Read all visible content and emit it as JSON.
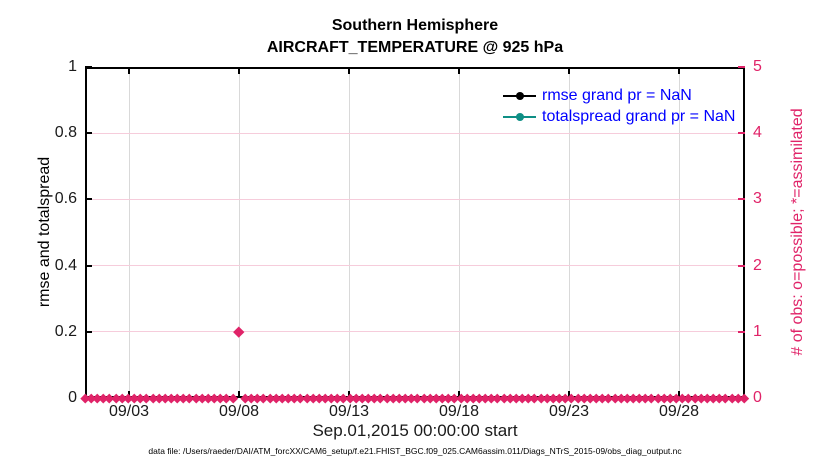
{
  "window": {
    "kind": "matlab-style observation diagnostics plot"
  },
  "title": {
    "line1": "Southern Hemisphere",
    "line2": "AIRCRAFT_TEMPERATURE @ 925 hPa"
  },
  "legend": {
    "text_color": "#0000ff",
    "items": [
      {
        "label": "rmse grand pr = NaN",
        "color": "#000000"
      },
      {
        "label": "totalspread grand pr = NaN",
        "color": "#0e8f85"
      }
    ]
  },
  "footer": "data file: /Users/raeder/DAI/ATM_forcXX/CAM6_setup/f.e21.FHIST_BGC.f09_025.CAM6assim.011/Diags_NTrS_2015-09/obs_diag_output.nc",
  "colors": {
    "obs_pink": "#e02368",
    "pink_grid": "#f6ccdb",
    "gray_grid": "#d9d9d9",
    "axis_black": "#000000",
    "tick_text": "#1a1a1a",
    "teal": "#0e8f85",
    "legend_blue": "#0000ff"
  },
  "chart_data": {
    "type": "scatter",
    "title": "Southern Hemisphere — AIRCRAFT_TEMPERATURE @ 925 hPa",
    "x_axis": {
      "label": "Sep.01,2015 00:00:00 start",
      "start_day": 0,
      "end_day": 30,
      "tick_labels": [
        "09/03",
        "09/08",
        "09/13",
        "09/18",
        "09/23",
        "09/28"
      ],
      "tick_days": [
        2,
        7,
        12,
        17,
        22,
        27
      ]
    },
    "y_left": {
      "label": "rmse and totalspread",
      "range": [
        0,
        1
      ],
      "ticks": [
        0,
        0.2,
        0.4,
        0.6,
        0.8,
        1
      ],
      "color": "#000000"
    },
    "y_right": {
      "label": "# of obs: o=possible; *=assimilated",
      "range": [
        0,
        5
      ],
      "ticks": [
        0,
        1,
        2,
        3,
        4,
        5
      ],
      "color": "#e02368"
    },
    "grid": {
      "vertical": true,
      "horizontal": true
    },
    "series": [
      {
        "name": "rmse grand pr",
        "value": "NaN",
        "color": "#000000",
        "marker": "filled-circle",
        "points": []
      },
      {
        "name": "totalspread grand pr",
        "value": "NaN",
        "color": "#0e8f85",
        "marker": "filled-circle",
        "points": []
      },
      {
        "name": "number of observations (o=possible, *=assimilated)",
        "axis": "right",
        "color": "#e02368",
        "marker": "asterisk-diamond",
        "band": {
          "value": 0,
          "start_day": 0,
          "end_day": 30,
          "step_days": 0.28,
          "gap_at_days": [
            7
          ]
        },
        "points": [
          {
            "day": 7,
            "date": "09/08",
            "value": 1
          }
        ]
      }
    ],
    "legend_position": "upper-right-inside, no box"
  }
}
